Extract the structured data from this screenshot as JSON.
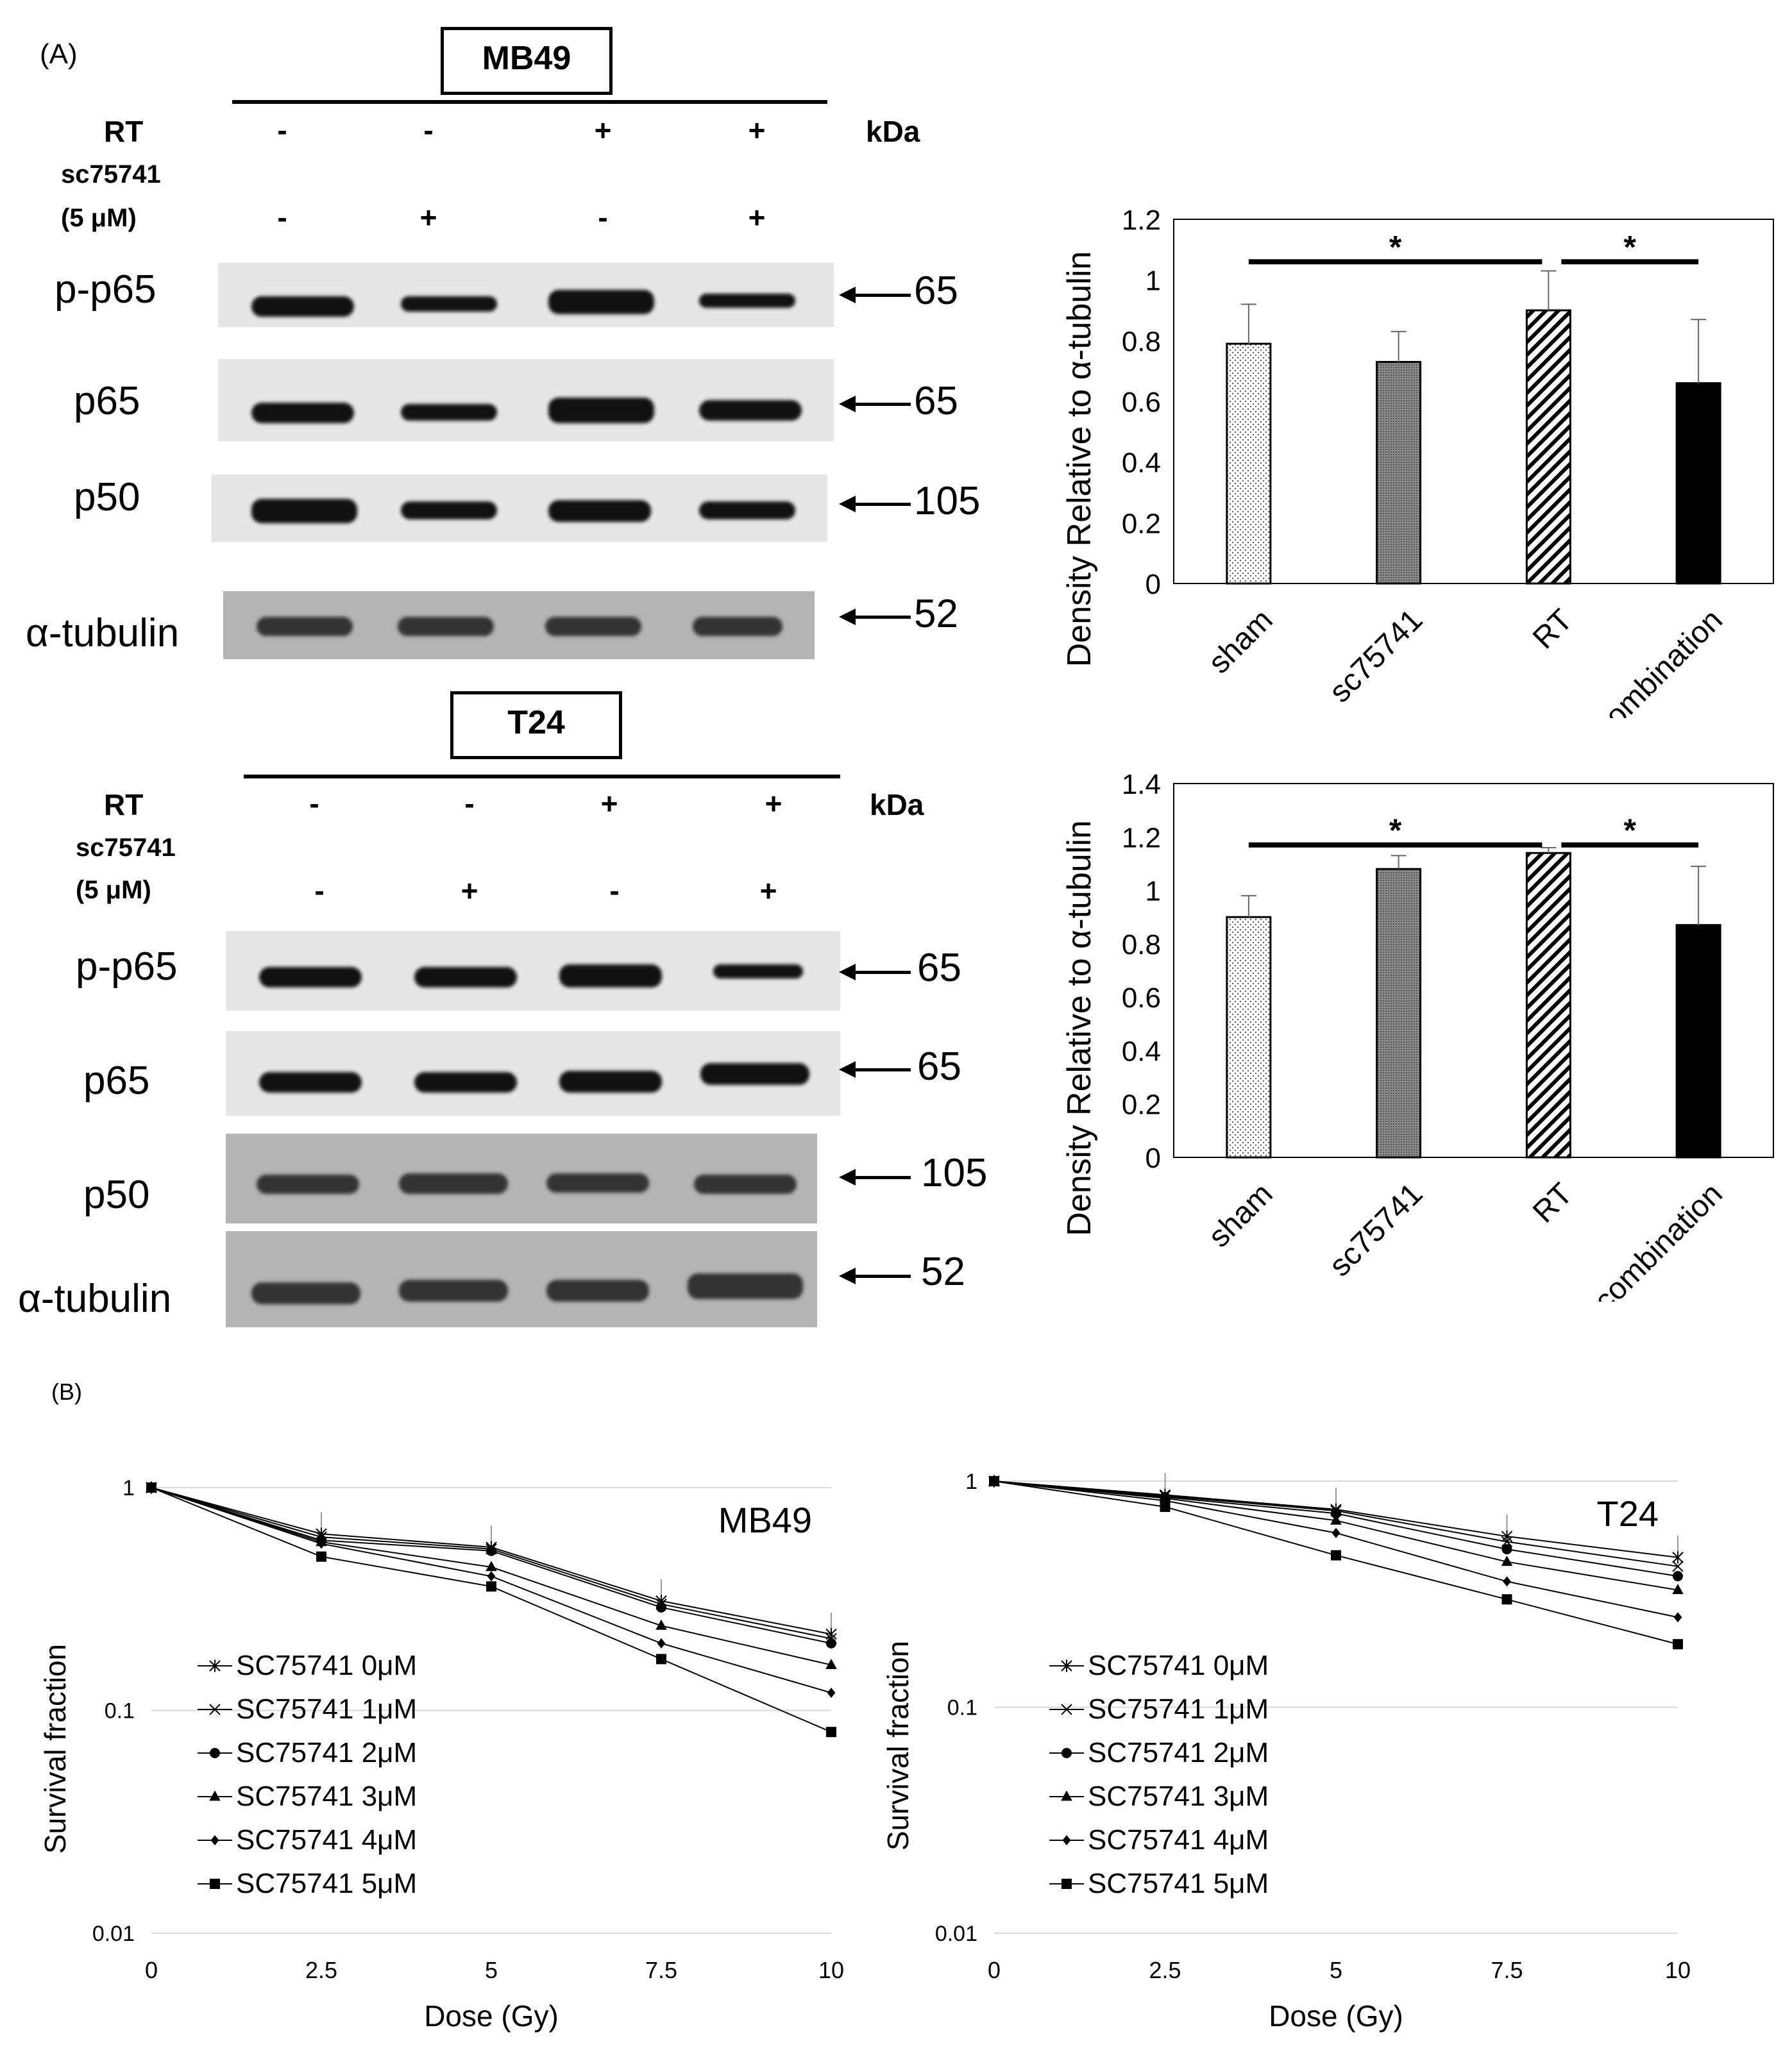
{
  "panel_a_label": "(A)",
  "panel_b_label": "(B)",
  "mb49_blot": {
    "title": "MB49",
    "rt_label": "RT",
    "rt_signs": [
      "-",
      "-",
      "+",
      "+"
    ],
    "drug_label_line1": "sc75741",
    "drug_label_line2": "(5 μM)",
    "drug_signs": [
      "-",
      "+",
      "-",
      "+"
    ],
    "kda_label": "kDa",
    "rows": [
      {
        "name": "p-p65",
        "mw": "65"
      },
      {
        "name": "p65",
        "mw": "65"
      },
      {
        "name": "p50",
        "mw": "105"
      },
      {
        "name": "α-tubulin",
        "mw": "52"
      }
    ]
  },
  "t24_blot": {
    "title": "T24",
    "rt_label": "RT",
    "rt_signs": [
      "-",
      "-",
      "+",
      "+"
    ],
    "drug_label_line1": "sc75741",
    "drug_label_line2": "(5 μM)",
    "drug_signs": [
      "-",
      "+",
      "-",
      "+"
    ],
    "kda_label": "kDa",
    "rows": [
      {
        "name": "p-p65",
        "mw": "65"
      },
      {
        "name": "p65",
        "mw": "65"
      },
      {
        "name": "p50",
        "mw": "105"
      },
      {
        "name": "α-tubulin",
        "mw": "52"
      }
    ]
  },
  "chart_data": [
    {
      "type": "bar",
      "panel": "MB49 density",
      "categories": [
        "sham",
        "sc75741",
        "RT",
        "combination"
      ],
      "values": [
        0.79,
        0.73,
        0.9,
        0.66
      ],
      "errors": [
        0.13,
        0.1,
        0.13,
        0.21
      ],
      "patterns": [
        "dots",
        "dense",
        "hatch",
        "solid"
      ],
      "ylabel": "Density Relative to α-tubulin",
      "ylim": [
        0,
        1.2
      ],
      "yticks": [
        "0",
        "0.2",
        "0.4",
        "0.6",
        "0.8",
        "1",
        "1.2"
      ],
      "significance": [
        {
          "from": "sham",
          "to": "RT",
          "label": "*"
        },
        {
          "from": "RT",
          "to": "combination",
          "label": "*"
        }
      ]
    },
    {
      "type": "bar",
      "panel": "T24 density",
      "categories": [
        "sham",
        "sc75741",
        "RT",
        "combination"
      ],
      "values": [
        0.9,
        1.08,
        1.14,
        0.87
      ],
      "errors": [
        0.08,
        0.05,
        0.02,
        0.22
      ],
      "patterns": [
        "dots",
        "dense",
        "hatch",
        "solid"
      ],
      "ylabel": "Density Relative to α-tubulin",
      "ylim": [
        0,
        1.4
      ],
      "yticks": [
        "0",
        "0.2",
        "0.4",
        "0.6",
        "0.8",
        "1",
        "1.2",
        "1.4"
      ],
      "significance": [
        {
          "from": "sham",
          "to": "RT",
          "label": "*"
        },
        {
          "from": "RT",
          "to": "combination",
          "label": "*"
        }
      ]
    },
    {
      "type": "line",
      "scale": "log",
      "inner_title": "MB49",
      "x": [
        0,
        2.5,
        5,
        7.5,
        10
      ],
      "xticks": [
        "0",
        "2.5",
        "5",
        "7.5",
        "10"
      ],
      "yticks": [
        "1",
        "0.1",
        "0.01"
      ],
      "ylim": [
        0.01,
        1
      ],
      "xlabel": "Dose (Gy)",
      "ylabel": "Survival fraction",
      "legend": "left",
      "series": [
        {
          "name": "SC75741 0μM",
          "marker": "asterisk",
          "values": [
            1,
            0.62,
            0.54,
            0.31,
            0.22
          ]
        },
        {
          "name": "SC75741 1μM",
          "marker": "x",
          "values": [
            1,
            0.6,
            0.53,
            0.3,
            0.21
          ]
        },
        {
          "name": "SC75741 2μM",
          "marker": "circle",
          "values": [
            1,
            0.58,
            0.52,
            0.29,
            0.2
          ]
        },
        {
          "name": "SC75741 3μM",
          "marker": "triangle",
          "values": [
            1,
            0.57,
            0.44,
            0.24,
            0.16
          ]
        },
        {
          "name": "SC75741 4μM",
          "marker": "diamond",
          "values": [
            1,
            0.56,
            0.4,
            0.2,
            0.12
          ]
        },
        {
          "name": "SC75741 5μM",
          "marker": "square",
          "values": [
            1,
            0.49,
            0.36,
            0.17,
            0.08
          ]
        }
      ]
    },
    {
      "type": "line",
      "scale": "log",
      "inner_title": "T24",
      "x": [
        0,
        2.5,
        5,
        7.5,
        10
      ],
      "xticks": [
        "0",
        "2.5",
        "5",
        "7.5",
        "10"
      ],
      "yticks": [
        "1",
        "0.1",
        "0.01"
      ],
      "ylim": [
        0.01,
        1
      ],
      "xlabel": "Dose (Gy)",
      "ylabel": "Survival fraction",
      "legend": "left",
      "series": [
        {
          "name": "SC75741 0μM",
          "marker": "asterisk",
          "values": [
            1,
            0.87,
            0.75,
            0.57,
            0.46
          ]
        },
        {
          "name": "SC75741 1μM",
          "marker": "x",
          "values": [
            1,
            0.86,
            0.74,
            0.54,
            0.42
          ]
        },
        {
          "name": "SC75741 2μM",
          "marker": "circle",
          "values": [
            1,
            0.85,
            0.72,
            0.5,
            0.38
          ]
        },
        {
          "name": "SC75741 3μM",
          "marker": "triangle",
          "values": [
            1,
            0.84,
            0.67,
            0.44,
            0.33
          ]
        },
        {
          "name": "SC75741 4μM",
          "marker": "diamond",
          "values": [
            1,
            0.82,
            0.59,
            0.36,
            0.25
          ]
        },
        {
          "name": "SC75741 5μM",
          "marker": "square",
          "values": [
            1,
            0.77,
            0.47,
            0.3,
            0.19
          ]
        }
      ]
    }
  ]
}
